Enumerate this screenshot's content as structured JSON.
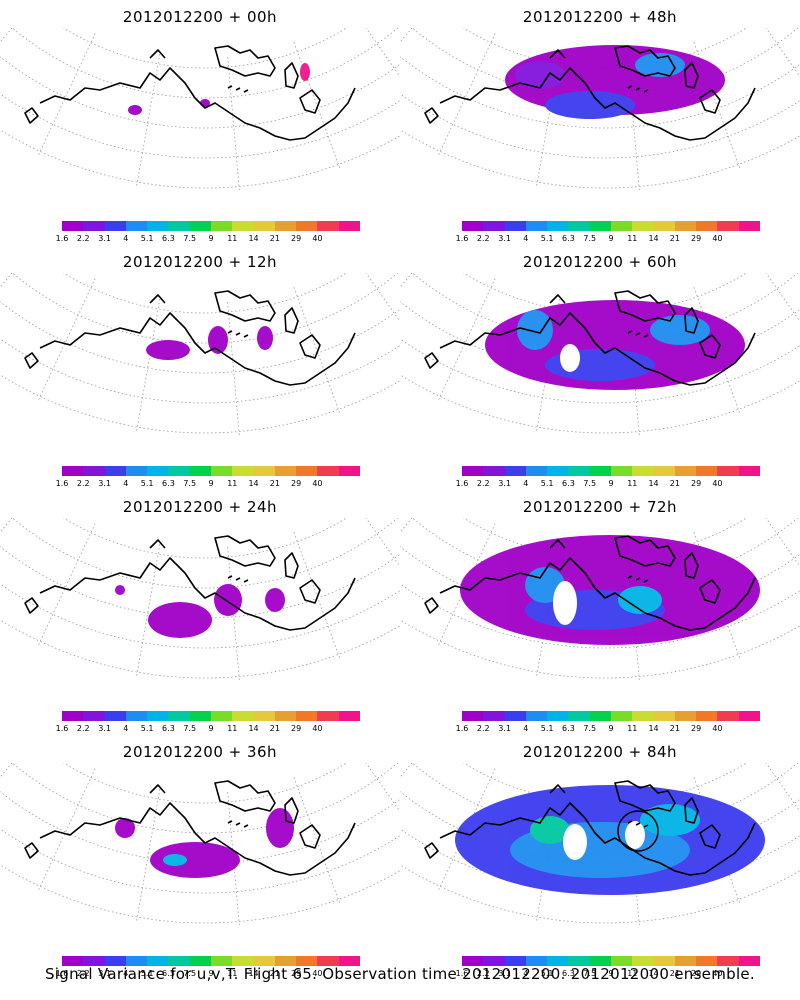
{
  "panels": [
    {
      "title": "2012012200 + 00h"
    },
    {
      "title": "2012012200 + 48h"
    },
    {
      "title": "2012012200 + 12h"
    },
    {
      "title": "2012012200 + 60h"
    },
    {
      "title": "2012012200 + 24h"
    },
    {
      "title": "2012012200 + 72h"
    },
    {
      "title": "2012012200 + 36h"
    },
    {
      "title": "2012012200 + 84h"
    }
  ],
  "colorbar": {
    "labels": [
      "1.6",
      "2.2",
      "3.1",
      "4",
      "5.1",
      "6.3",
      "7.5",
      "9",
      "11",
      "14",
      "21",
      "29",
      "40"
    ],
    "colors": [
      "#a000c8",
      "#8214dc",
      "#3c3cf0",
      "#1e8cf0",
      "#00b4e6",
      "#00c8a0",
      "#00d250",
      "#78dc28",
      "#c8dc32",
      "#e6c83c",
      "#e6a032",
      "#f07828",
      "#f03c50",
      "#f0148c"
    ]
  },
  "caption": "Signal Variance for u,v,T. Flight 65. Observation time 2012012200. 2012012000 ensemble."
}
